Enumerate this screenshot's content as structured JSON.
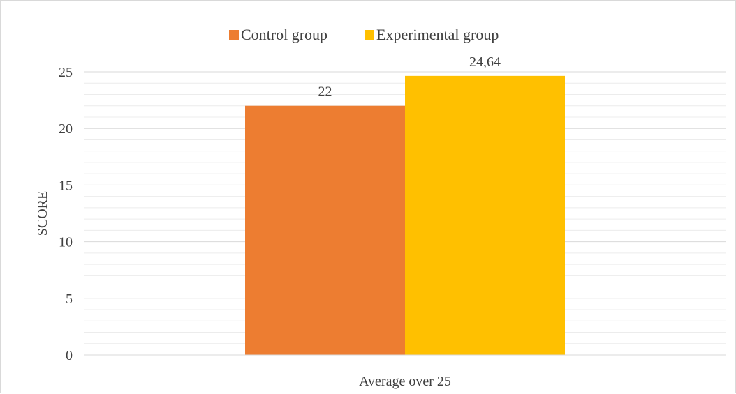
{
  "chart_data": {
    "type": "bar",
    "categories": [
      "Average over 25"
    ],
    "series": [
      {
        "name": "Control group",
        "values": [
          22
        ],
        "labels": [
          "22"
        ],
        "color": "#ED7D31"
      },
      {
        "name": "Experimental group",
        "values": [
          24.64
        ],
        "labels": [
          "24,64"
        ],
        "color": "#FFC000"
      }
    ],
    "title": "",
    "xlabel": "",
    "ylabel": "SCORE",
    "ylim": [
      0,
      25
    ],
    "yticks": [
      0,
      5,
      10,
      15,
      20,
      25
    ],
    "grid": true,
    "minor_grid": true,
    "legend_position": "top"
  }
}
